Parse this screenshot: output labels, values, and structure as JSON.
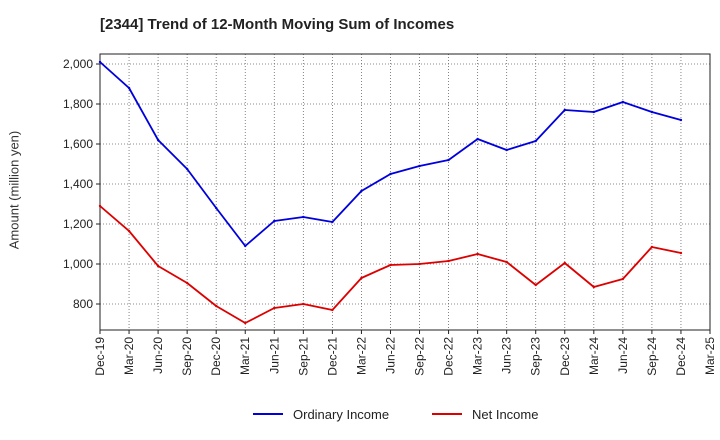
{
  "chart_data": {
    "type": "line",
    "title": "[2344]  Trend of 12-Month Moving Sum of Incomes",
    "xlabel": "",
    "ylabel": "Amount (million yen)",
    "ylim": [
      670,
      2050
    ],
    "yticks": [
      800,
      1000,
      1200,
      1400,
      1600,
      1800,
      2000
    ],
    "ytick_labels": [
      "800",
      "1,000",
      "1,200",
      "1,400",
      "1,600",
      "1,800",
      "2,000"
    ],
    "categories": [
      "Dec-19",
      "Mar-20",
      "Jun-20",
      "Sep-20",
      "Dec-20",
      "Mar-21",
      "Jun-21",
      "Sep-21",
      "Dec-21",
      "Mar-22",
      "Jun-22",
      "Sep-22",
      "Dec-22",
      "Mar-23",
      "Jun-23",
      "Sep-23",
      "Dec-23",
      "Mar-24",
      "Jun-24",
      "Sep-24",
      "Dec-24",
      "Mar-25"
    ],
    "grid": true,
    "legend_position": "bottom-center",
    "series": [
      {
        "name": "Ordinary Income",
        "color": "#0000dd",
        "values": [
          2010,
          1880,
          1620,
          1475,
          1280,
          1090,
          1215,
          1235,
          1210,
          1365,
          1450,
          1490,
          1520,
          1625,
          1570,
          1615,
          1770,
          1760,
          1810,
          1760,
          1720,
          null
        ]
      },
      {
        "name": "Net Income",
        "color": "#dd0000",
        "values": [
          1290,
          1165,
          990,
          905,
          790,
          705,
          780,
          800,
          770,
          930,
          995,
          1000,
          1015,
          1050,
          1010,
          895,
          1005,
          885,
          925,
          1085,
          1055,
          null
        ]
      }
    ]
  }
}
